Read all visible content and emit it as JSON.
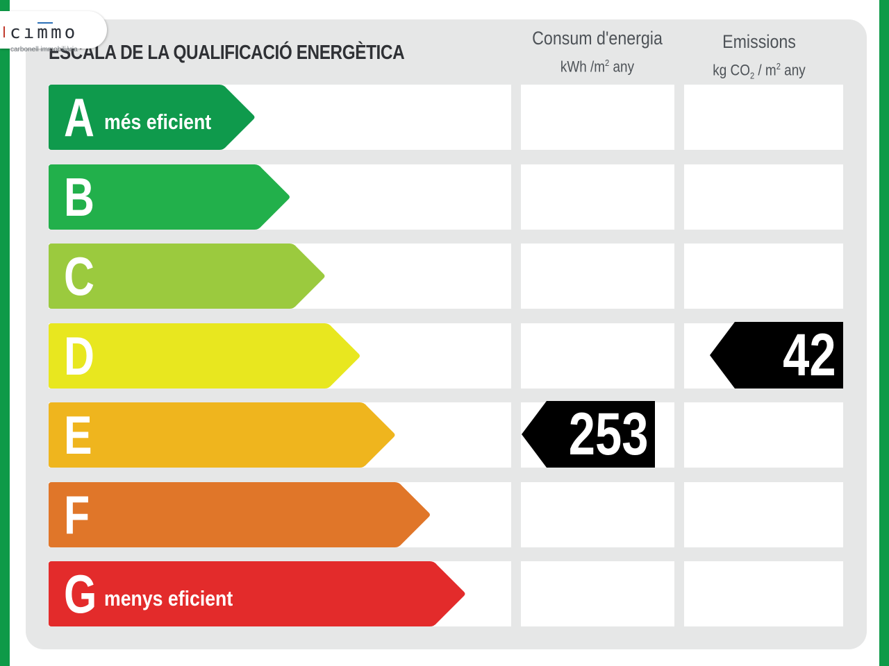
{
  "brand": {
    "logo_text": "cımmo",
    "logo_subtitle": "carbonell immobiliària"
  },
  "scale_title": "ESCALA DE LA QUALIFICACIÓ ENERGÈTICA",
  "columns": {
    "consumption": {
      "title": "Consum d'energia",
      "unit_prefix": "kWh /m",
      "unit_exp": "2",
      "unit_suffix": " any"
    },
    "emissions": {
      "title": "Emissions",
      "unit_prefix": "kg CO",
      "unit_sub": "2",
      "unit_mid": " / m",
      "unit_exp": "2",
      "unit_suffix": " any"
    }
  },
  "ratings": [
    {
      "letter": "A",
      "label": "més eficient",
      "color": "#0f9a4c",
      "bar_length": 1
    },
    {
      "letter": "B",
      "label": "",
      "color": "#22b04b",
      "bar_length": 2
    },
    {
      "letter": "C",
      "label": "",
      "color": "#9bca3e",
      "bar_length": 3
    },
    {
      "letter": "D",
      "label": "",
      "color": "#e8e71f",
      "bar_length": 4
    },
    {
      "letter": "E",
      "label": "",
      "color": "#efb51e",
      "bar_length": 5
    },
    {
      "letter": "F",
      "label": "",
      "color": "#e07629",
      "bar_length": 6
    },
    {
      "letter": "G",
      "label": "menys eficient",
      "color": "#e32b2b",
      "bar_length": 7
    }
  ],
  "result": {
    "consumption": {
      "value": "253",
      "rating": "E"
    },
    "emissions": {
      "value": "42",
      "rating": "D"
    }
  },
  "colors": {
    "frame_green": "#0e9a48",
    "panel_gray": "#e6e7e7",
    "marker_black": "#000000"
  }
}
